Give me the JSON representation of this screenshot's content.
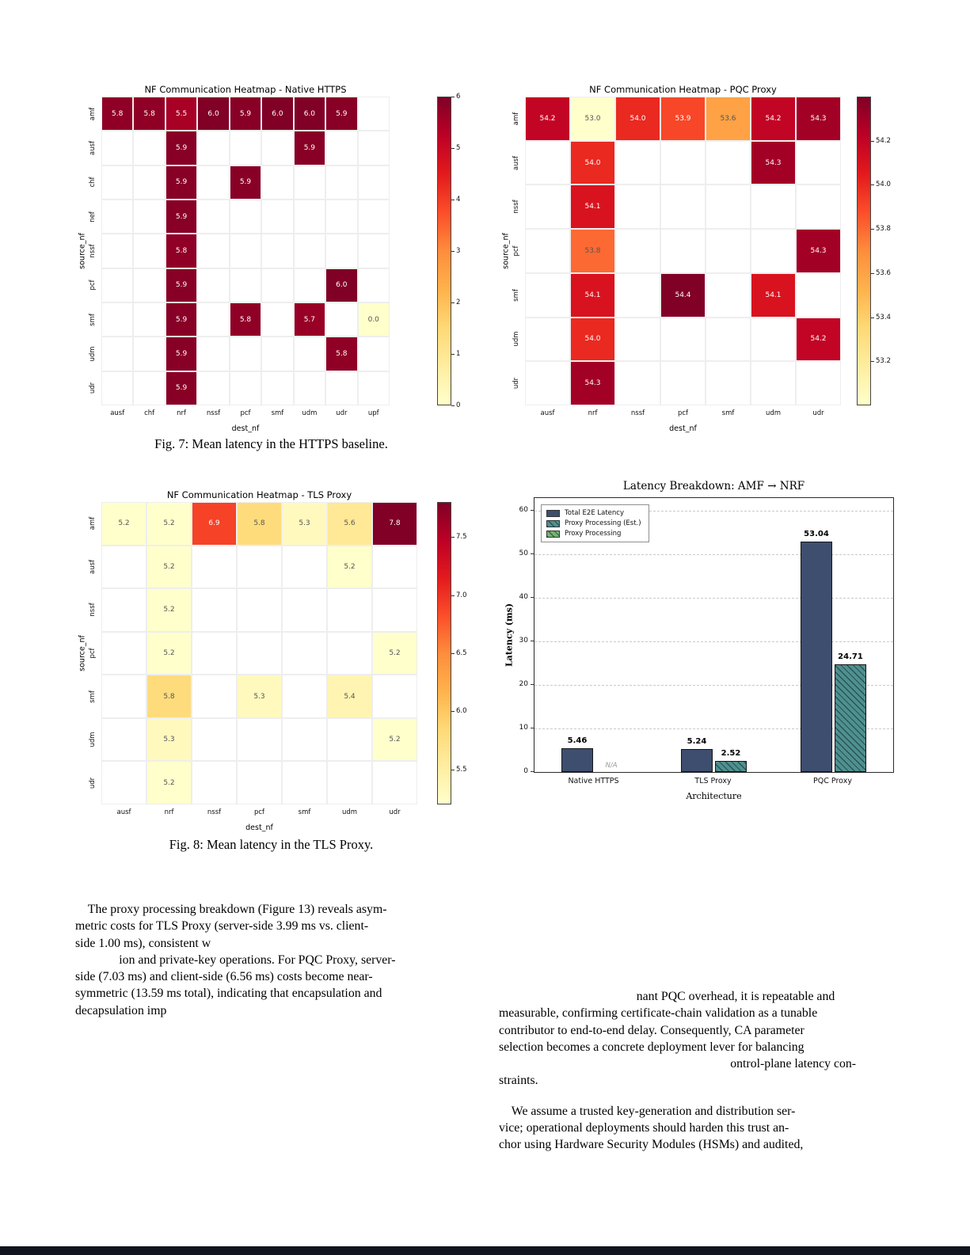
{
  "page": {
    "footer_bar_color": "#12151f"
  },
  "captions": {
    "fig7": "Fig. 7: Mean latency in the HTTPS baseline.",
    "fig8": "Fig. 8: Mean latency in the TLS Proxy."
  },
  "body": {
    "left_lines": [
      "    The proxy processing breakdown (Figure 13) reveals asym-",
      "metric costs for TLS Proxy (server-side 3.99 ms vs. client-",
      "side 1.00 ms), consistent w",
      "              ion and private-key operations. For PQC Proxy, server-",
      "side (7.03 ms) and client-side (6.56 ms) costs become near-",
      "symmetric (13.59 ms total), indicating that encapsulation and",
      "decapsulation imp"
    ],
    "right_para1_lines": [
      "                                            nant PQC overhead, it is repeatable and",
      "measurable, confirming certificate-chain validation as a tunable",
      "contributor to end-to-end delay. Consequently, CA parameter",
      "selection becomes a concrete deployment lever for balancing",
      "                                                                          ontrol-plane latency con-",
      "straints."
    ],
    "right_para2_lines": [
      "    We assume a trusted key-generation and distribution ser-",
      "vice; operational deployments should harden this trust an-",
      "chor using Hardware Security Modules (HSMs) and audited,"
    ]
  },
  "chart_data": [
    {
      "id": "https",
      "type": "heatmap",
      "title": "NF Communication Heatmap - Native HTTPS",
      "xlabel": "dest_nf",
      "ylabel": "source_nf",
      "x_categories": [
        "ausf",
        "chf",
        "nrf",
        "nssf",
        "pcf",
        "smf",
        "udm",
        "udr",
        "upf"
      ],
      "y_categories": [
        "amf",
        "ausf",
        "chf",
        "nef",
        "nssf",
        "pcf",
        "smf",
        "udm",
        "udr"
      ],
      "vmin": 0.0,
      "vmax": 6.0,
      "colorbar_ticks": [
        {
          "v": 0,
          "label": "0"
        },
        {
          "v": 1,
          "label": "1"
        },
        {
          "v": 2,
          "label": "2"
        },
        {
          "v": 3,
          "label": "3"
        },
        {
          "v": 4,
          "label": "4"
        },
        {
          "v": 5,
          "label": "5"
        },
        {
          "v": 6,
          "label": "6"
        }
      ],
      "cells": [
        {
          "y": "amf",
          "x": "ausf",
          "v": 5.8
        },
        {
          "y": "amf",
          "x": "chf",
          "v": 5.8
        },
        {
          "y": "amf",
          "x": "nrf",
          "v": 5.5
        },
        {
          "y": "amf",
          "x": "nssf",
          "v": 6.0
        },
        {
          "y": "amf",
          "x": "pcf",
          "v": 5.9
        },
        {
          "y": "amf",
          "x": "smf",
          "v": 6.0
        },
        {
          "y": "amf",
          "x": "udm",
          "v": 6.0
        },
        {
          "y": "amf",
          "x": "udr",
          "v": 5.9
        },
        {
          "y": "ausf",
          "x": "nrf",
          "v": 5.9
        },
        {
          "y": "ausf",
          "x": "udm",
          "v": 5.9
        },
        {
          "y": "chf",
          "x": "nrf",
          "v": 5.9
        },
        {
          "y": "chf",
          "x": "pcf",
          "v": 5.9
        },
        {
          "y": "nef",
          "x": "nrf",
          "v": 5.9
        },
        {
          "y": "nssf",
          "x": "nrf",
          "v": 5.8
        },
        {
          "y": "pcf",
          "x": "nrf",
          "v": 5.9
        },
        {
          "y": "pcf",
          "x": "udr",
          "v": 6.0
        },
        {
          "y": "smf",
          "x": "nrf",
          "v": 5.9
        },
        {
          "y": "smf",
          "x": "pcf",
          "v": 5.8
        },
        {
          "y": "smf",
          "x": "udm",
          "v": 5.7
        },
        {
          "y": "smf",
          "x": "upf",
          "v": 0.0
        },
        {
          "y": "udm",
          "x": "nrf",
          "v": 5.9
        },
        {
          "y": "udm",
          "x": "udr",
          "v": 5.8
        },
        {
          "y": "udr",
          "x": "nrf",
          "v": 5.9
        }
      ]
    },
    {
      "id": "pqc",
      "type": "heatmap",
      "title": "NF Communication Heatmap - PQC Proxy",
      "xlabel": "dest_nf",
      "ylabel": "source_nf",
      "x_categories": [
        "ausf",
        "nrf",
        "nssf",
        "pcf",
        "smf",
        "udm",
        "udr"
      ],
      "y_categories": [
        "amf",
        "ausf",
        "nssf",
        "pcf",
        "smf",
        "udm",
        "udr"
      ],
      "vmin": 53.0,
      "vmax": 54.4,
      "colorbar_ticks": [
        {
          "v": 53.2,
          "label": "53.2"
        },
        {
          "v": 53.4,
          "label": "53.4"
        },
        {
          "v": 53.6,
          "label": "53.6"
        },
        {
          "v": 53.8,
          "label": "53.8"
        },
        {
          "v": 54.0,
          "label": "54.0"
        },
        {
          "v": 54.2,
          "label": "54.2"
        }
      ],
      "cells": [
        {
          "y": "amf",
          "x": "ausf",
          "v": 54.2
        },
        {
          "y": "amf",
          "x": "nrf",
          "v": 53.0
        },
        {
          "y": "amf",
          "x": "nssf",
          "v": 54.0
        },
        {
          "y": "amf",
          "x": "pcf",
          "v": 53.9
        },
        {
          "y": "amf",
          "x": "smf",
          "v": 53.6
        },
        {
          "y": "amf",
          "x": "udm",
          "v": 54.2
        },
        {
          "y": "amf",
          "x": "udr",
          "v": 54.3
        },
        {
          "y": "ausf",
          "x": "nrf",
          "v": 54.0
        },
        {
          "y": "ausf",
          "x": "udm",
          "v": 54.3
        },
        {
          "y": "nssf",
          "x": "nrf",
          "v": 54.1
        },
        {
          "y": "pcf",
          "x": "nrf",
          "v": 53.8
        },
        {
          "y": "pcf",
          "x": "udr",
          "v": 54.3
        },
        {
          "y": "smf",
          "x": "nrf",
          "v": 54.1
        },
        {
          "y": "smf",
          "x": "pcf",
          "v": 54.4
        },
        {
          "y": "smf",
          "x": "udm",
          "v": 54.1
        },
        {
          "y": "udm",
          "x": "nrf",
          "v": 54.0
        },
        {
          "y": "udm",
          "x": "udr",
          "v": 54.2
        },
        {
          "y": "udr",
          "x": "nrf",
          "v": 54.3
        }
      ]
    },
    {
      "id": "tls",
      "type": "heatmap",
      "title": "NF Communication Heatmap - TLS Proxy",
      "xlabel": "dest_nf",
      "ylabel": "source_nf",
      "x_categories": [
        "ausf",
        "nrf",
        "nssf",
        "pcf",
        "smf",
        "udm",
        "udr"
      ],
      "y_categories": [
        "amf",
        "ausf",
        "nssf",
        "pcf",
        "smf",
        "udm",
        "udr"
      ],
      "vmin": 5.2,
      "vmax": 7.8,
      "colorbar_ticks": [
        {
          "v": 5.5,
          "label": "5.5"
        },
        {
          "v": 6.0,
          "label": "6.0"
        },
        {
          "v": 6.5,
          "label": "6.5"
        },
        {
          "v": 7.0,
          "label": "7.0"
        },
        {
          "v": 7.5,
          "label": "7.5"
        }
      ],
      "cells": [
        {
          "y": "amf",
          "x": "ausf",
          "v": 5.2
        },
        {
          "y": "amf",
          "x": "nrf",
          "v": 5.2
        },
        {
          "y": "amf",
          "x": "nssf",
          "v": 6.9
        },
        {
          "y": "amf",
          "x": "pcf",
          "v": 5.8
        },
        {
          "y": "amf",
          "x": "smf",
          "v": 5.3
        },
        {
          "y": "amf",
          "x": "udm",
          "v": 5.6
        },
        {
          "y": "amf",
          "x": "udr",
          "v": 7.8
        },
        {
          "y": "ausf",
          "x": "nrf",
          "v": 5.2
        },
        {
          "y": "ausf",
          "x": "udm",
          "v": 5.2
        },
        {
          "y": "nssf",
          "x": "nrf",
          "v": 5.2
        },
        {
          "y": "pcf",
          "x": "nrf",
          "v": 5.2
        },
        {
          "y": "pcf",
          "x": "udr",
          "v": 5.2
        },
        {
          "y": "smf",
          "x": "nrf",
          "v": 5.8
        },
        {
          "y": "smf",
          "x": "pcf",
          "v": 5.3
        },
        {
          "y": "smf",
          "x": "udm",
          "v": 5.4
        },
        {
          "y": "udm",
          "x": "nrf",
          "v": 5.3
        },
        {
          "y": "udm",
          "x": "udr",
          "v": 5.2
        },
        {
          "y": "udr",
          "x": "nrf",
          "v": 5.2
        }
      ]
    },
    {
      "id": "latency_breakdown",
      "type": "bar",
      "title": "Latency Breakdown: AMF → NRF",
      "xlabel": "Architecture",
      "ylabel": "Latency (ms)",
      "ylim": [
        0,
        63
      ],
      "yticks": [
        {
          "v": 0,
          "label": "0"
        },
        {
          "v": 10,
          "label": "10"
        },
        {
          "v": 20,
          "label": "20"
        },
        {
          "v": 30,
          "label": "30"
        },
        {
          "v": 40,
          "label": "40"
        },
        {
          "v": 50,
          "label": "50"
        },
        {
          "v": 60,
          "label": "60"
        }
      ],
      "series": {
        "total": {
          "label": "Total E2E Latency",
          "color": "#3e4e6e",
          "hatch": false
        },
        "proxy_est": {
          "label": "Proxy Processing (Est.)",
          "color": "#4f9090",
          "hatch": true
        },
        "proxy": {
          "label": "Proxy Processing",
          "color": "#74b274",
          "hatch": true
        }
      },
      "legend_order": [
        "total",
        "proxy_est",
        "proxy"
      ],
      "groups": [
        {
          "label": "Native HTTPS",
          "bars": [
            {
              "series": "total",
              "value": 5.46,
              "value_label": "5.46"
            }
          ],
          "missing_label": "N/A"
        },
        {
          "label": "TLS Proxy",
          "bars": [
            {
              "series": "total",
              "value": 5.24,
              "value_label": "5.24"
            },
            {
              "series": "proxy_est",
              "value": 2.52,
              "value_label": "2.52"
            }
          ]
        },
        {
          "label": "PQC Proxy",
          "bars": [
            {
              "series": "total",
              "value": 53.04,
              "value_label": "53.04"
            },
            {
              "series": "proxy_est",
              "value": 24.71,
              "value_label": "24.71"
            }
          ]
        }
      ]
    }
  ]
}
